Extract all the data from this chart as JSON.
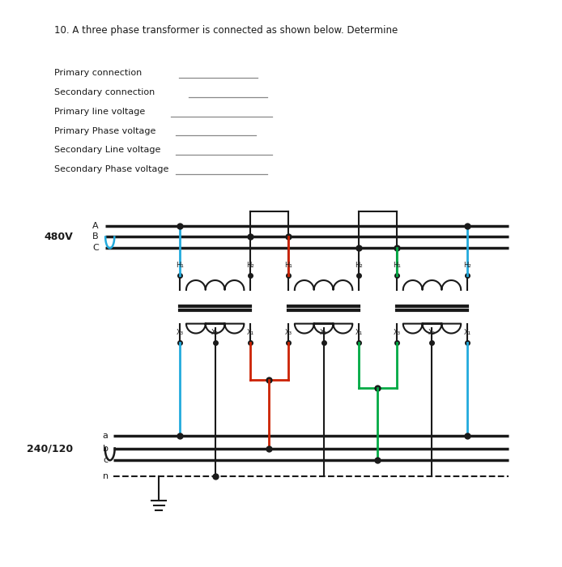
{
  "title": "10. A three phase transformer is connected as shown below. Determine",
  "background_color": "#ffffff",
  "text_color": "#222222",
  "fill_in_labels": [
    "Primary connection",
    "Secondary connection",
    "Primary line voltage",
    "Primary Phase voltage",
    "Secondary Line voltage",
    "Secondary Phase voltage"
  ],
  "colors": {
    "black": "#1a1a1a",
    "red": "#cc2200",
    "cyan": "#22aadd",
    "green": "#00aa44",
    "gray": "#888888"
  },
  "primary_voltage": "480V",
  "secondary_voltage": "240/120"
}
